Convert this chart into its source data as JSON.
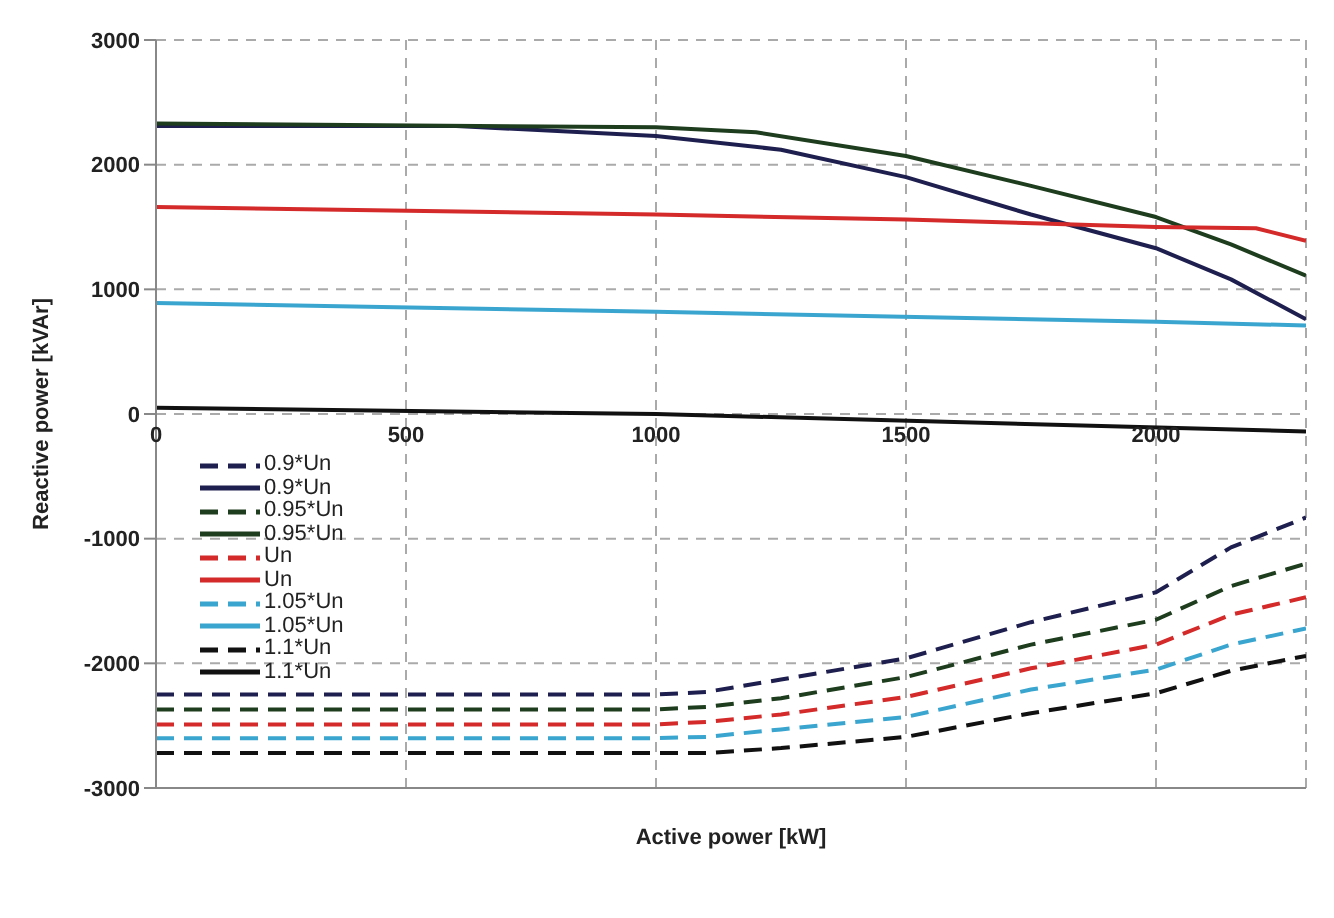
{
  "chart_data": {
    "type": "line",
    "xlabel": "Active power [kW]",
    "ylabel": "Reactive power [kVAr]",
    "xlim": [
      0,
      2300
    ],
    "xticks": [
      0,
      500,
      1000,
      1500,
      2000
    ],
    "ylim": [
      -3000,
      3000
    ],
    "yticks": [
      -3000,
      -2000,
      -1000,
      0,
      1000,
      2000,
      3000
    ],
    "grid": true,
    "legend": "left",
    "marker": "none",
    "series": [
      {
        "name": "0.9*Un",
        "color": "#1f1f4f",
        "line_style": "dashed",
        "x": [
          0,
          1000,
          1100,
          1250,
          1500,
          1750,
          2000,
          2150,
          2300
        ],
        "values": [
          -2250,
          -2250,
          -2230,
          -2130,
          -1960,
          -1670,
          -1430,
          -1070,
          -830
        ]
      },
      {
        "name": "0.9*Un",
        "color": "#1f1f4f",
        "line_style": "solid",
        "x": [
          0,
          600,
          1000,
          1250,
          1500,
          1750,
          2000,
          2150,
          2300
        ],
        "values": [
          2310,
          2310,
          2230,
          2120,
          1900,
          1600,
          1330,
          1080,
          760
        ]
      },
      {
        "name": "0.95*Un",
        "color": "#1e3d1e",
        "line_style": "dashed",
        "x": [
          0,
          1000,
          1100,
          1250,
          1500,
          1750,
          2000,
          2150,
          2300
        ],
        "values": [
          -2370,
          -2370,
          -2350,
          -2280,
          -2110,
          -1850,
          -1650,
          -1380,
          -1200
        ]
      },
      {
        "name": "0.95*Un",
        "color": "#1e3d1e",
        "line_style": "solid",
        "x": [
          0,
          1000,
          1200,
          1500,
          1750,
          2000,
          2150,
          2300
        ],
        "values": [
          2330,
          2300,
          2260,
          2070,
          1830,
          1580,
          1360,
          1110
        ]
      },
      {
        "name": "Un",
        "color": "#d42a2a",
        "line_style": "dashed",
        "x": [
          0,
          1000,
          1100,
          1250,
          1500,
          1750,
          2000,
          2150,
          2300
        ],
        "values": [
          -2490,
          -2490,
          -2470,
          -2410,
          -2270,
          -2040,
          -1850,
          -1610,
          -1470
        ]
      },
      {
        "name": "Un",
        "color": "#d42a2a",
        "line_style": "solid",
        "x": [
          0,
          1000,
          1500,
          2000,
          2200,
          2300
        ],
        "values": [
          1660,
          1600,
          1560,
          1500,
          1490,
          1390
        ]
      },
      {
        "name": "1.05*Un",
        "color": "#3aa6d0",
        "line_style": "dashed",
        "x": [
          0,
          1000,
          1100,
          1250,
          1500,
          1750,
          2000,
          2150,
          2300
        ],
        "values": [
          -2600,
          -2600,
          -2590,
          -2530,
          -2430,
          -2210,
          -2050,
          -1850,
          -1720
        ]
      },
      {
        "name": "1.05*Un",
        "color": "#3aa6d0",
        "line_style": "solid",
        "x": [
          0,
          1000,
          2000,
          2300
        ],
        "values": [
          890,
          820,
          740,
          710
        ]
      },
      {
        "name": "1.1*Un",
        "color": "#111111",
        "line_style": "dashed",
        "x": [
          0,
          1000,
          1100,
          1250,
          1500,
          1750,
          2000,
          2150,
          2300
        ],
        "values": [
          -2720,
          -2720,
          -2720,
          -2680,
          -2590,
          -2400,
          -2240,
          -2060,
          -1940
        ]
      },
      {
        "name": "1.1*Un",
        "color": "#111111",
        "line_style": "solid",
        "x": [
          0,
          1000,
          2300
        ],
        "values": [
          50,
          0,
          -140
        ]
      }
    ]
  }
}
